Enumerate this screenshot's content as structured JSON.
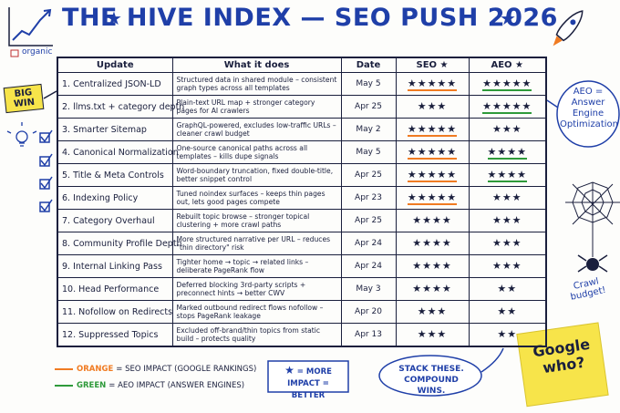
{
  "title": "THE HIVE INDEX — SEO PUSH 2026",
  "doodle": {
    "label": "organic"
  },
  "badge": "BIG WIN",
  "aeo_note": "AEO = Answer Engine Optimization",
  "crawl_note": "Crawl budget!",
  "sticky_note": "Google who?",
  "table": {
    "headers": [
      "Update",
      "What it does",
      "Date",
      "SEO ★",
      "AEO ★"
    ],
    "rows": [
      {
        "update": "1. Centralized JSON-LD",
        "description": "Structured data in shared module – consistent graph types across all templates",
        "date": "May 5",
        "seo": "★★★★★",
        "aeo": "★★★★★",
        "seo_underline": true,
        "aeo_underline": true
      },
      {
        "update": "2. llms.txt + category depth",
        "description": "Plain-text URL map + stronger category pages for AI crawlers",
        "date": "Apr 25",
        "seo": "★★★",
        "aeo": "★★★★★",
        "seo_underline": false,
        "aeo_underline": true
      },
      {
        "update": "3. Smarter Sitemap",
        "description": "GraphQL-powered, excludes low-traffic URLs – cleaner crawl budget",
        "date": "May 2",
        "seo": "★★★★★",
        "aeo": "★★★",
        "seo_underline": true,
        "aeo_underline": false
      },
      {
        "update": "4. Canonical Normalization",
        "description": "One-source canonical paths across all templates – kills dupe signals",
        "date": "May 5",
        "seo": "★★★★★",
        "aeo": "★★★★",
        "seo_underline": true,
        "aeo_underline": true
      },
      {
        "update": "5. Title & Meta Controls",
        "description": "Word-boundary truncation, fixed double-title, better snippet control",
        "date": "Apr 25",
        "seo": "★★★★★",
        "aeo": "★★★★",
        "seo_underline": true,
        "aeo_underline": true
      },
      {
        "update": "6. Indexing Policy",
        "description": "Tuned noindex surfaces – keeps thin pages out, lets good pages compete",
        "date": "Apr 23",
        "seo": "★★★★★",
        "aeo": "★★★",
        "seo_underline": true,
        "aeo_underline": false
      },
      {
        "update": "7. Category Overhaul",
        "description": "Rebuilt topic browse – stronger topical clustering + more crawl paths",
        "date": "Apr 25",
        "seo": "★★★★",
        "aeo": "★★★",
        "seo_underline": false,
        "aeo_underline": false
      },
      {
        "update": "8. Community Profile Depth",
        "description": "More structured narrative per URL – reduces \"thin directory\" risk",
        "date": "Apr 24",
        "seo": "★★★★",
        "aeo": "★★★",
        "seo_underline": false,
        "aeo_underline": false
      },
      {
        "update": "9. Internal Linking Pass",
        "description": "Tighter home → topic → related links – deliberate PageRank flow",
        "date": "Apr 24",
        "seo": "★★★★",
        "aeo": "★★★",
        "seo_underline": false,
        "aeo_underline": false
      },
      {
        "update": "10. Head Performance",
        "description": "Deferred blocking 3rd-party scripts + preconnect hints → better CWV",
        "date": "May 3",
        "seo": "★★★★",
        "aeo": "★★",
        "seo_underline": false,
        "aeo_underline": false
      },
      {
        "update": "11. Nofollow on Redirects",
        "description": "Marked outbound redirect flows nofollow – stops PageRank leakage",
        "date": "Apr 20",
        "seo": "★★★",
        "aeo": "★★",
        "seo_underline": false,
        "aeo_underline": false
      },
      {
        "update": "12. Suppressed Topics",
        "description": "Excluded off-brand/thin topics from static build – protects quality",
        "date": "Apr 13",
        "seo": "★★★",
        "aeo": "★★",
        "seo_underline": false,
        "aeo_underline": false
      }
    ]
  },
  "legend": [
    {
      "key": "ORANGE",
      "text": "= SEO IMPACT (GOOGLE RANKINGS)",
      "color": "#f07b22"
    },
    {
      "key": "GREEN",
      "text": "= AEO IMPACT (ANSWER ENGINES)",
      "color": "#2e9a3a"
    }
  ],
  "star_key": {
    "star": "★",
    "text": "= MORE IMPACT = BETTER"
  },
  "callout": "STACK THESE. COMPOUND WINS."
}
